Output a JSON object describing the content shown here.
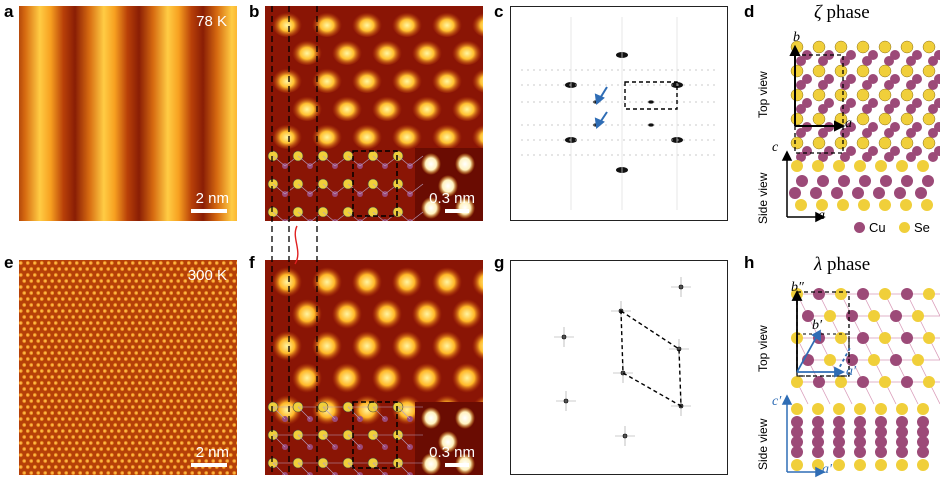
{
  "panels": {
    "a": {
      "label": "a",
      "temperature": "78 K",
      "scale": "2 nm"
    },
    "b": {
      "label": "b",
      "scale": "0.3 nm"
    },
    "c": {
      "label": "c"
    },
    "d": {
      "label": "d",
      "phase_symbol": "ζ",
      "phase_word": "phase",
      "top_view": "Top view",
      "side_view": "Side view",
      "axis_a": "a",
      "axis_b": "b",
      "axis_c": "c",
      "legend_cu": "Cu",
      "legend_se": "Se"
    },
    "e": {
      "label": "e",
      "temperature": "300 K",
      "scale": "2 nm"
    },
    "f": {
      "label": "f",
      "scale": "0.3 nm"
    },
    "g": {
      "label": "g"
    },
    "h": {
      "label": "h",
      "phase_symbol": "λ",
      "phase_word": "phase",
      "top_view": "Top view",
      "side_view": "Side view",
      "axis_a1": "a′",
      "axis_b1": "b′",
      "axis_b2": "b″",
      "axis_c1": "c′"
    }
  },
  "colors": {
    "cu": "#9c4a78",
    "se": "#f0cf3a",
    "stm_dark": "#7a0c00",
    "stm_bright": "#ffe066",
    "arrow_blue": "#2f6db5"
  }
}
